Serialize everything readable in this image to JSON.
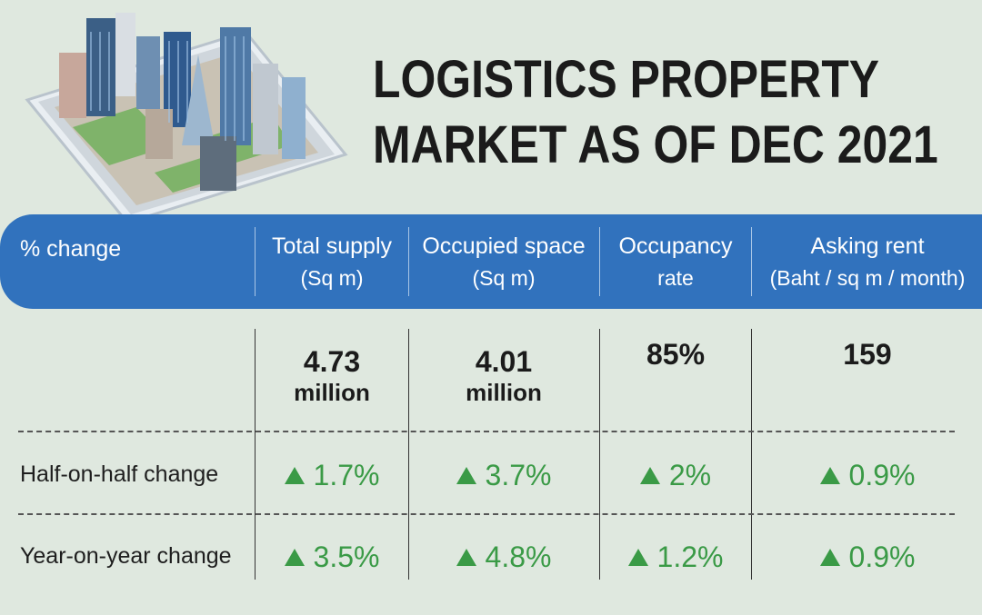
{
  "title": {
    "line1": "LOGISTICS PROPERTY",
    "line2": "MARKET AS OF DEC 2021"
  },
  "colors": {
    "header_band": "#3172bd",
    "positive_change": "#3a9a46",
    "background": "#dfe8df"
  },
  "icons": {
    "illustration": "city-skyline-on-smartphone-icon",
    "increase": "triangle-up-icon"
  },
  "chart_data": {
    "type": "table",
    "header": {
      "row_label": "% change",
      "columns": [
        {
          "line1": "Total supply",
          "line2": "(Sq m)"
        },
        {
          "line1": "Occupied space",
          "line2": "(Sq m)"
        },
        {
          "line1": "Occupancy",
          "line2": "rate"
        },
        {
          "line1": "Asking rent",
          "line2": "(Baht / sq m / month)"
        }
      ]
    },
    "totals": [
      {
        "value": "4.73",
        "unit": "million"
      },
      {
        "value": "4.01",
        "unit": "million"
      },
      {
        "value": "85%",
        "unit": ""
      },
      {
        "value": "159",
        "unit": ""
      }
    ],
    "rows": [
      {
        "label": "Half-on-half change",
        "values": [
          "1.7%",
          "3.7%",
          "2%",
          "0.9%"
        ],
        "direction": [
          "up",
          "up",
          "up",
          "up"
        ]
      },
      {
        "label": "Year-on-year change",
        "values": [
          "3.5%",
          "4.8%",
          "1.2%",
          "0.9%"
        ],
        "direction": [
          "up",
          "up",
          "up",
          "up"
        ]
      }
    ]
  }
}
